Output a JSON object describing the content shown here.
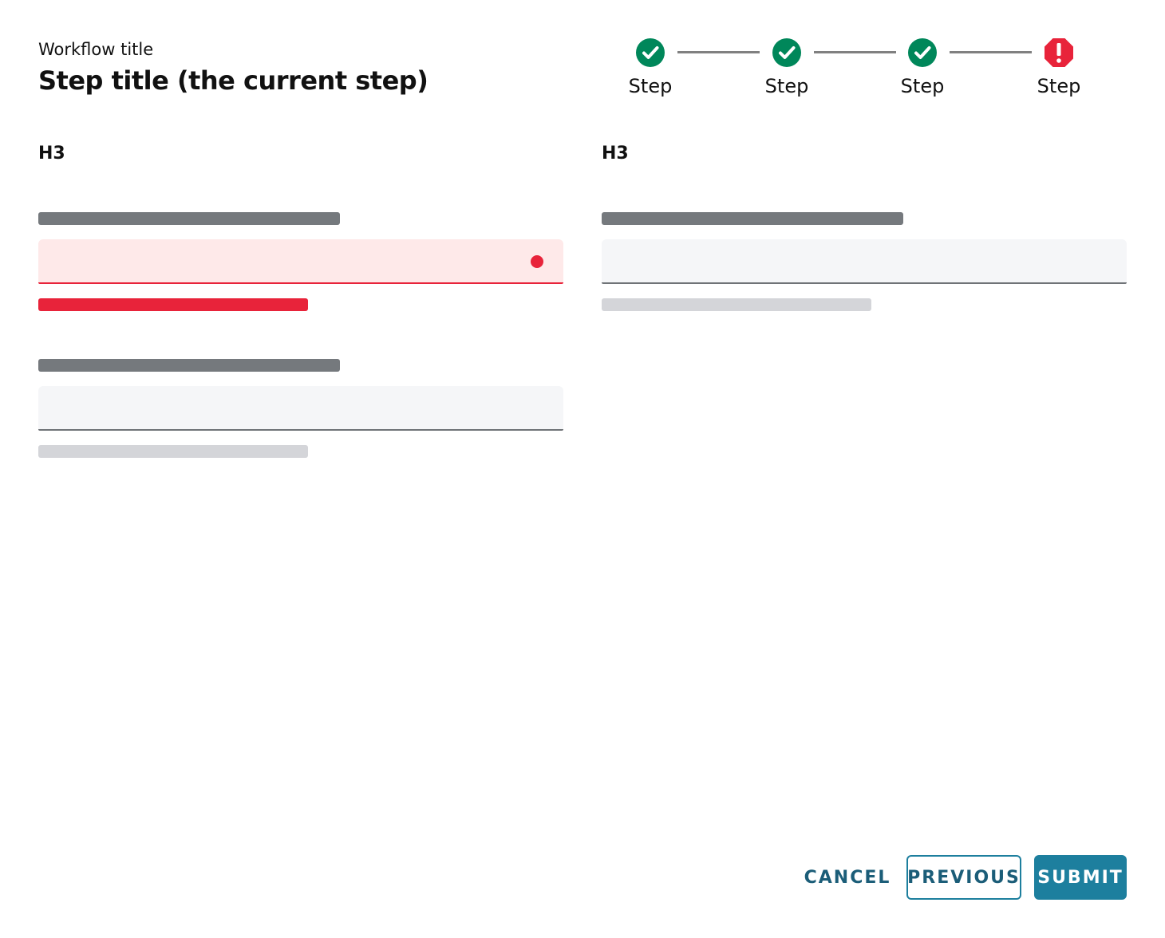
{
  "header": {
    "workflow_title": "Workflow title",
    "step_title": "Step title (the current step)"
  },
  "stepper": {
    "steps": [
      {
        "label": "Step",
        "status": "complete",
        "icon": "check-circle-icon"
      },
      {
        "label": "Step",
        "status": "complete",
        "icon": "check-circle-icon"
      },
      {
        "label": "Step",
        "status": "complete",
        "icon": "check-circle-icon"
      },
      {
        "label": "Step",
        "status": "error",
        "icon": "error-octagon-icon"
      }
    ]
  },
  "columns": [
    {
      "heading": "H3"
    },
    {
      "heading": "H3"
    }
  ],
  "footer": {
    "cancel": "CANCEL",
    "previous": "PREVIOUS",
    "submit": "SUBMIT"
  },
  "colors": {
    "success": "#00875a",
    "error": "#e8233a",
    "primary": "#1d7f9e",
    "primary_text": "#1b5d78"
  }
}
